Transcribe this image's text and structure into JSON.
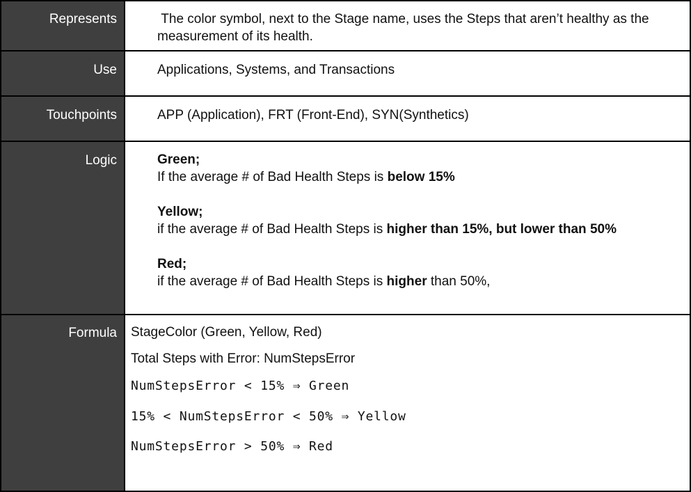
{
  "rows": {
    "represents": {
      "label": "Represents",
      "text": " The color symbol, next to the Stage name, uses the Steps that aren’t healthy as the measurement of its health."
    },
    "use": {
      "label": "Use",
      "text": "Applications, Systems, and Transactions"
    },
    "touchpoints": {
      "label": "Touchpoints",
      "text": "APP (Application), FRT (Front-End), SYN(Synthetics)"
    },
    "logic": {
      "label": "Logic",
      "green_title": "Green;",
      "green_text": "If the average # of Bad Health Steps is ",
      "green_bold": "below 15%",
      "yellow_title": "Yellow;",
      "yellow_text": "if the average # of Bad Health Steps is ",
      "yellow_bold": "higher than 15%, but lower than 50%",
      "red_title": "Red;",
      "red_text": "if the average # of Bad Health Steps is ",
      "red_bold": "higher",
      "red_tail": " than 50%,"
    },
    "formula": {
      "label": "Formula",
      "line1": "StageColor (Green, Yellow, Red)",
      "line2": "Total Steps with Error: NumStepsError",
      "rule1": "NumStepsError < 15% ⇒ Green",
      "rule2": "15% < NumStepsError < 50% ⇒ Yellow",
      "rule3": "NumStepsError > 50% ⇒ Red"
    }
  }
}
